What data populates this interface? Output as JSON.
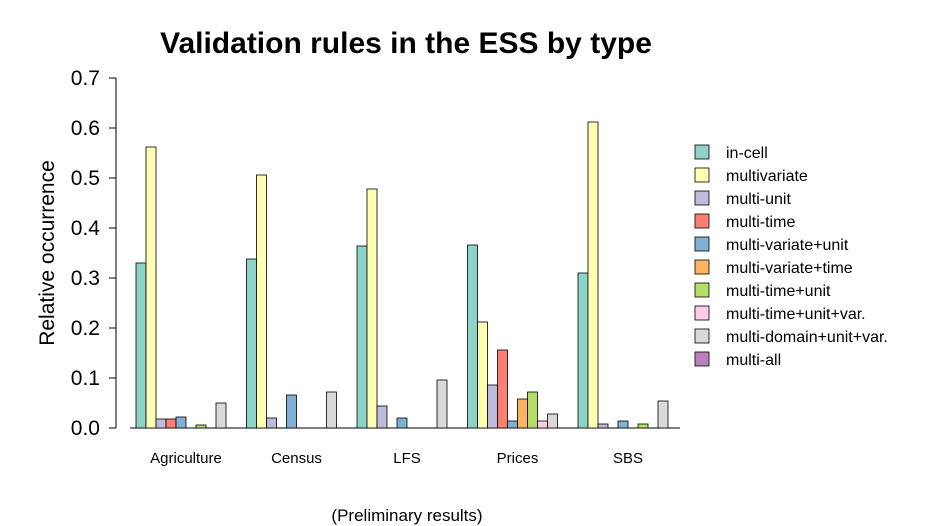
{
  "chart_data": {
    "type": "bar",
    "title": "Validation rules in the ESS by type",
    "xlabel": "",
    "ylabel": "Relative occurrence",
    "note": "(Preliminary results)",
    "ylim": [
      0,
      0.7
    ],
    "yticks": [
      "0.0",
      "0.1",
      "0.2",
      "0.3",
      "0.4",
      "0.5",
      "0.6",
      "0.7"
    ],
    "categories": [
      "Agriculture",
      "Census",
      "LFS",
      "Prices",
      "SBS"
    ],
    "legend_position": "right",
    "grid": false,
    "series": [
      {
        "name": "in-cell",
        "color": "#8DD3C7",
        "values": [
          0.33,
          0.338,
          0.364,
          0.366,
          0.31
        ]
      },
      {
        "name": "multivariate",
        "color": "#FFFFB3",
        "values": [
          0.562,
          0.506,
          0.478,
          0.212,
          0.612
        ]
      },
      {
        "name": "multi-unit",
        "color": "#BEBADA",
        "values": [
          0.018,
          0.02,
          0.044,
          0.086,
          0.008
        ]
      },
      {
        "name": "multi-time",
        "color": "#FB8072",
        "values": [
          0.018,
          0,
          0,
          0.156,
          0
        ]
      },
      {
        "name": "multi-variate+unit",
        "color": "#80B1D3",
        "values": [
          0.022,
          0.066,
          0.02,
          0.014,
          0.014
        ]
      },
      {
        "name": "multi-variate+time",
        "color": "#FDB462",
        "values": [
          0,
          0,
          0,
          0.058,
          0
        ]
      },
      {
        "name": "multi-time+unit",
        "color": "#B3DE69",
        "values": [
          0.006,
          0,
          0,
          0.072,
          0.008
        ]
      },
      {
        "name": "multi-time+unit+var.",
        "color": "#FCCDE5",
        "values": [
          0,
          0,
          0,
          0.014,
          0
        ]
      },
      {
        "name": "multi-domain+unit+var.",
        "color": "#D9D9D9",
        "values": [
          0.05,
          0.072,
          0.096,
          0.028,
          0.054
        ]
      },
      {
        "name": "multi-all",
        "color": "#BC80BD",
        "values": [
          0,
          0,
          0,
          0,
          0
        ]
      }
    ]
  }
}
